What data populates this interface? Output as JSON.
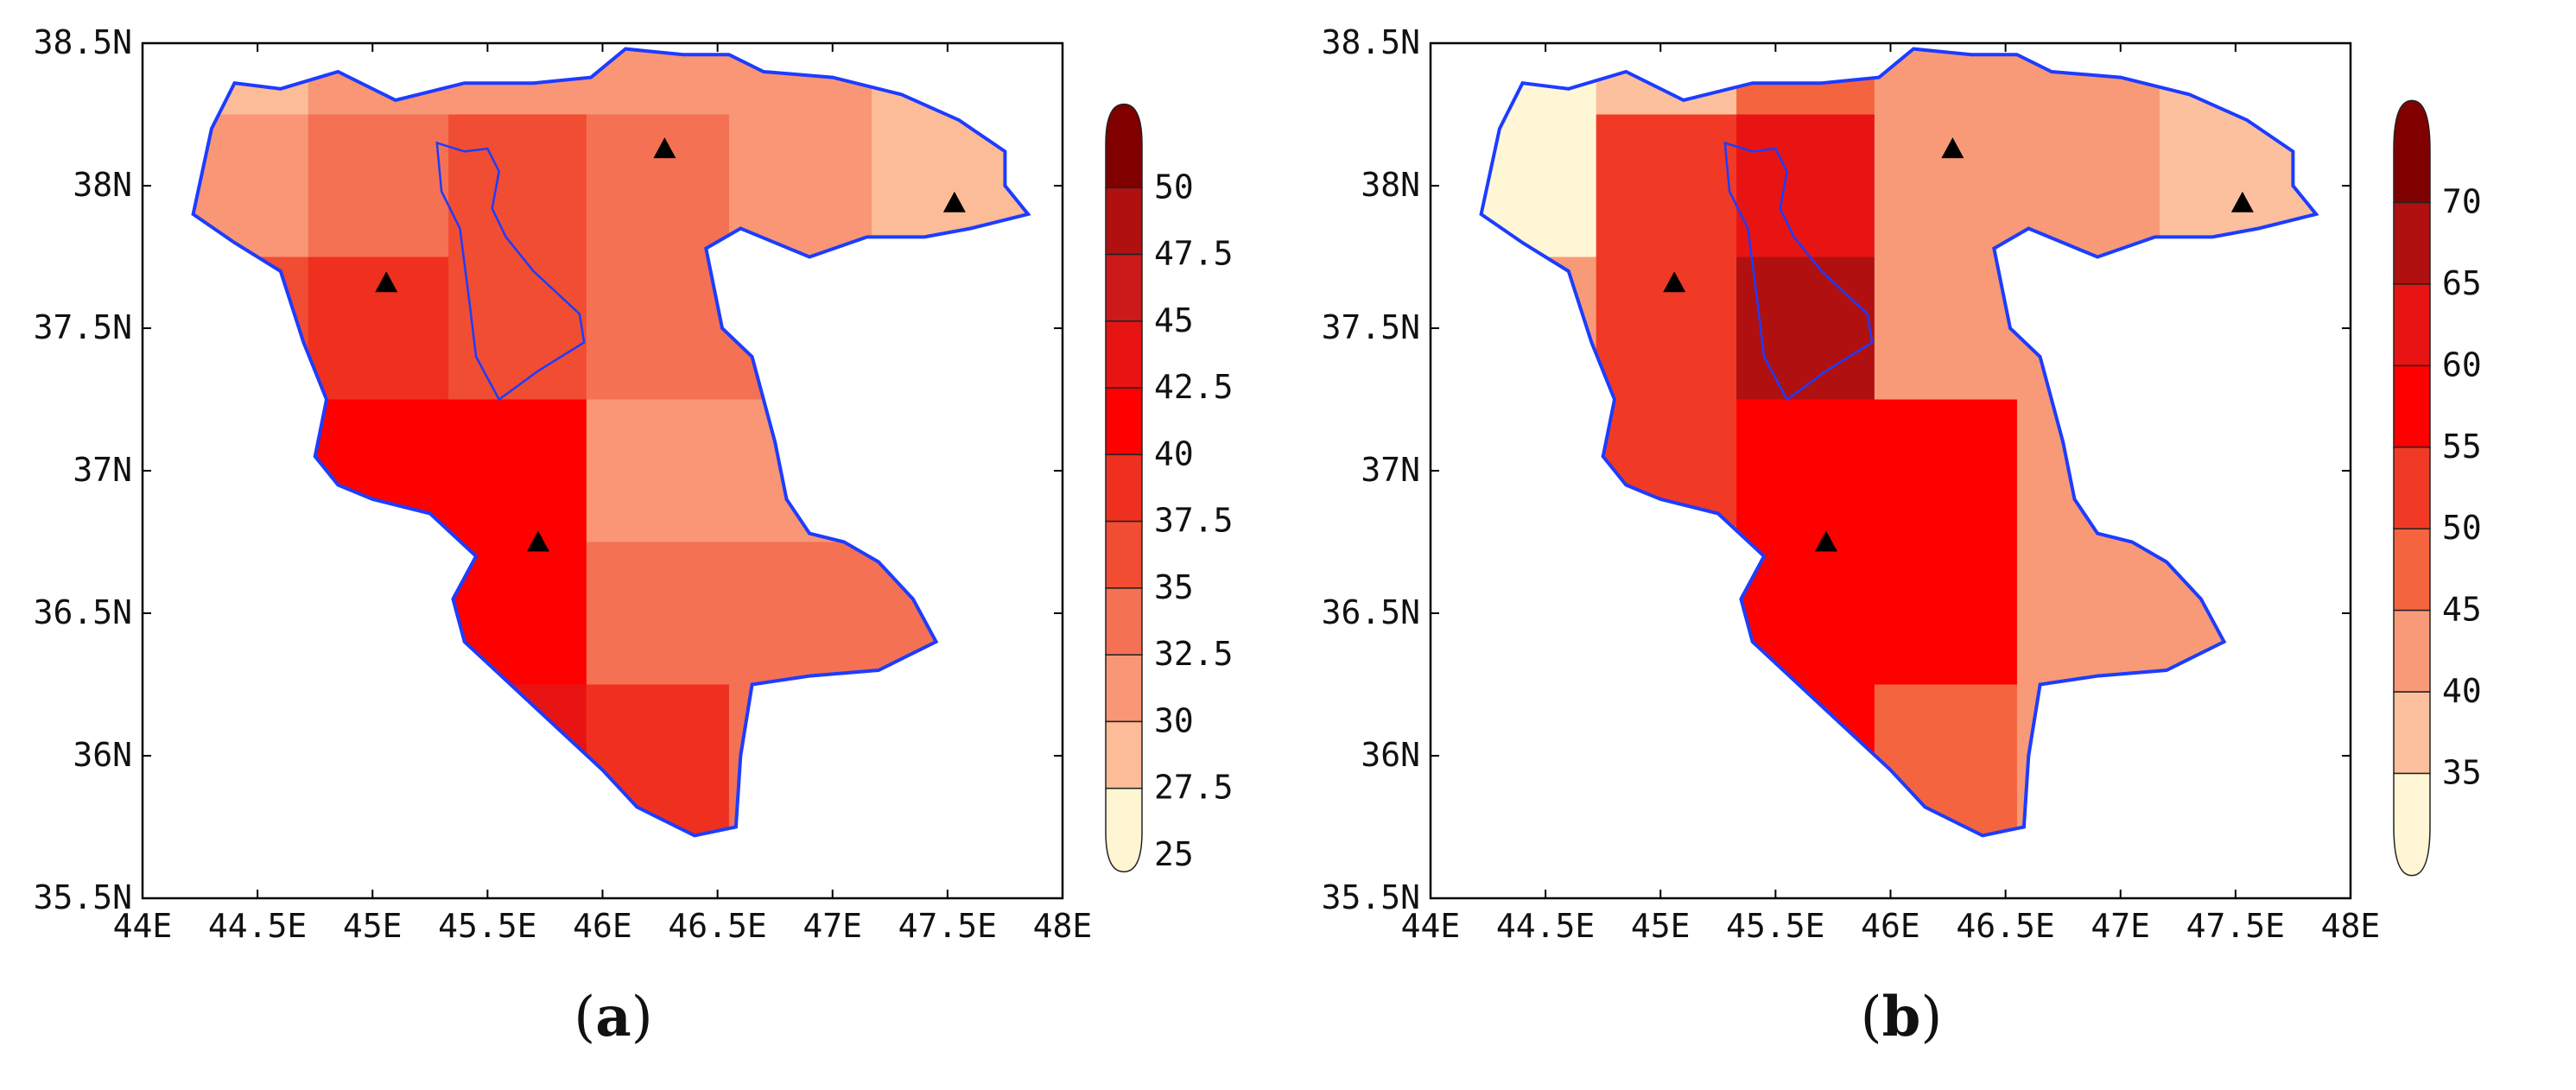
{
  "figure": {
    "axes": {
      "x_ticks": [
        "44E",
        "44.5E",
        "45E",
        "45.5E",
        "46E",
        "46.5E",
        "47E",
        "47.5E",
        "48E"
      ],
      "y_ticks": [
        "35.5N",
        "36N",
        "36.5N",
        "37N",
        "37.5N",
        "38N",
        "38.5N"
      ],
      "lon_range": [
        44,
        48
      ],
      "lat_range": [
        35.5,
        38.5
      ]
    },
    "stations": [
      {
        "lon": 46.27,
        "lat": 38.13
      },
      {
        "lon": 47.53,
        "lat": 37.94
      },
      {
        "lon": 45.06,
        "lat": 37.66
      },
      {
        "lon": 45.72,
        "lat": 36.75
      }
    ],
    "panels": [
      {
        "id": "a",
        "caption_open": "(",
        "caption_letter": "a",
        "caption_close": ")",
        "colorbar": {
          "labels": [
            "50",
            "47.5",
            "45",
            "42.5",
            "40",
            "37.5",
            "35",
            "32.5",
            "30",
            "27.5",
            "25"
          ],
          "colors": [
            "#800000",
            "#b01010",
            "#cc1a1a",
            "#e81414",
            "#ff0000",
            "#f0301e",
            "#f04d33",
            "#f57154",
            "#f89675",
            "#fcbc98",
            "#fef5d2"
          ]
        }
      },
      {
        "id": "b",
        "caption_open": "(",
        "caption_letter": "b",
        "caption_close": ")",
        "colorbar": {
          "labels": [
            "70",
            "65",
            "60",
            "55",
            "50",
            "45",
            "40",
            "35"
          ],
          "colors": [
            "#800000",
            "#b01010",
            "#e81414",
            "#ff0000",
            "#f03a25",
            "#f4643f",
            "#f89a77",
            "#fcc09e",
            "#fef6d4"
          ]
        }
      }
    ]
  }
}
